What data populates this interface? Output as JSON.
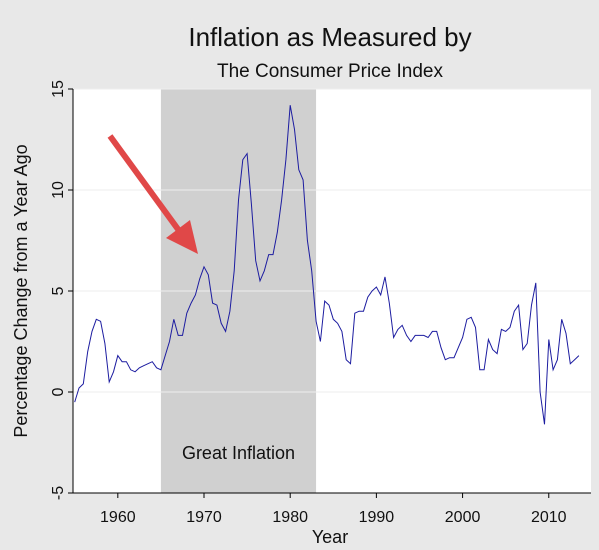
{
  "chart_data": {
    "type": "line",
    "title": "Inflation as Measured by",
    "subtitle": "The Consumer Price Index",
    "x_label": "Year",
    "y_label": "Percentage Change from a Year Ago",
    "x": [
      1955,
      1955.5,
      1956,
      1956.5,
      1957,
      1957.5,
      1958,
      1958.5,
      1959,
      1959.5,
      1960,
      1960.5,
      1961,
      1961.5,
      1962,
      1962.5,
      1963,
      1963.5,
      1964,
      1964.5,
      1965,
      1965.5,
      1966,
      1966.5,
      1967,
      1967.5,
      1968,
      1968.5,
      1969,
      1969.5,
      1970,
      1970.5,
      1971,
      1971.5,
      1972,
      1972.5,
      1973,
      1973.5,
      1974,
      1974.5,
      1975,
      1975.5,
      1976,
      1976.5,
      1977,
      1977.5,
      1978,
      1978.5,
      1979,
      1979.5,
      1980,
      1980.5,
      1981,
      1981.5,
      1982,
      1982.5,
      1983,
      1983.5,
      1984,
      1984.5,
      1985,
      1985.5,
      1986,
      1986.5,
      1987,
      1987.5,
      1988,
      1988.5,
      1989,
      1989.5,
      1990,
      1990.5,
      1991,
      1991.5,
      1992,
      1992.5,
      1993,
      1993.5,
      1994,
      1994.5,
      1995,
      1995.5,
      1996,
      1996.5,
      1997,
      1997.5,
      1998,
      1998.5,
      1999,
      1999.5,
      2000,
      2000.5,
      2001,
      2001.5,
      2002,
      2002.5,
      2003,
      2003.5,
      2004,
      2004.5,
      2005,
      2005.5,
      2006,
      2006.5,
      2007,
      2007.5,
      2008,
      2008.5,
      2009,
      2009.5,
      2010,
      2010.5,
      2011,
      2011.5,
      2012,
      2012.5,
      2013,
      2013.5
    ],
    "values": [
      -0.5,
      0.2,
      0.4,
      2.0,
      3.0,
      3.6,
      3.5,
      2.4,
      0.5,
      1.0,
      1.8,
      1.5,
      1.5,
      1.1,
      1.0,
      1.2,
      1.3,
      1.4,
      1.5,
      1.2,
      1.1,
      1.8,
      2.5,
      3.6,
      2.8,
      2.8,
      3.9,
      4.4,
      4.8,
      5.6,
      6.2,
      5.8,
      4.4,
      4.3,
      3.4,
      3.0,
      4.0,
      6.0,
      9.5,
      11.5,
      11.8,
      9.3,
      6.5,
      5.5,
      6.0,
      6.8,
      6.8,
      7.9,
      9.5,
      11.5,
      14.2,
      13.0,
      11.0,
      10.5,
      7.5,
      6.0,
      3.5,
      2.5,
      4.5,
      4.3,
      3.6,
      3.4,
      3.0,
      1.6,
      1.4,
      3.9,
      4.0,
      4.0,
      4.7,
      5.0,
      5.2,
      4.8,
      5.7,
      4.4,
      2.7,
      3.1,
      3.3,
      2.8,
      2.5,
      2.8,
      2.8,
      2.8,
      2.7,
      3.0,
      3.0,
      2.2,
      1.6,
      1.7,
      1.7,
      2.2,
      2.7,
      3.6,
      3.7,
      3.2,
      1.1,
      1.1,
      2.6,
      2.1,
      1.9,
      3.1,
      3.0,
      3.2,
      4.0,
      4.3,
      2.1,
      2.4,
      4.3,
      5.4,
      0.0,
      -1.6,
      2.6,
      1.1,
      1.6,
      3.6,
      2.9,
      1.4,
      1.6,
      1.8
    ],
    "color": "#1c1ca0",
    "shade": {
      "x0": 1965,
      "x1": 1983,
      "label": "Great Inflation",
      "color": "#d0d0d0"
    },
    "xlim": [
      1954.8,
      2014.9
    ],
    "xticks": [
      1960,
      1970,
      1980,
      1990,
      2000,
      2010
    ],
    "ylim": [
      -5,
      15
    ],
    "yticks": [
      -5,
      0,
      5,
      10,
      15
    ],
    "grid": true
  }
}
